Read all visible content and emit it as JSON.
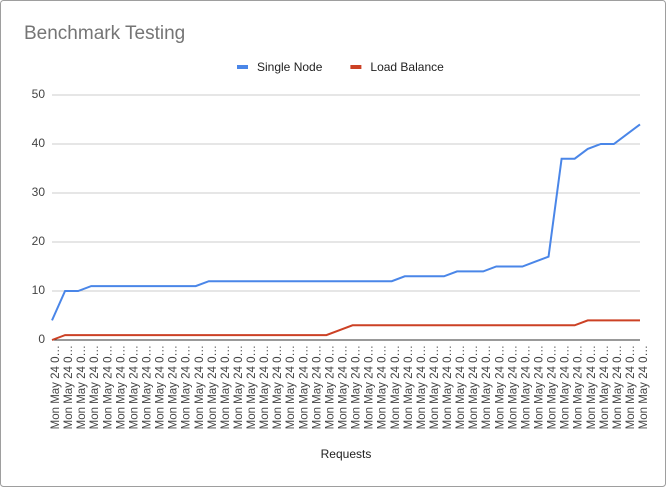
{
  "chart_data": {
    "type": "line",
    "title": "Benchmark Testing",
    "x_label": "Requests",
    "categories": [
      "Mon May 24 0…",
      "Mon May 24 0…",
      "Mon May 24 0…",
      "Mon May 24 0…",
      "Mon May 24 0…",
      "Mon May 24 0…",
      "Mon May 24 0…",
      "Mon May 24 0…",
      "Mon May 24 0…",
      "Mon May 24 0…",
      "Mon May 24 0…",
      "Mon May 24 0…",
      "Mon May 24 0…",
      "Mon May 24 0…",
      "Mon May 24 0…",
      "Mon May 24 0…",
      "Mon May 24 0…",
      "Mon May 24 0…",
      "Mon May 24 0…",
      "Mon May 24 0…",
      "Mon May 24 0…",
      "Mon May 24 0…",
      "Mon May 24 0…",
      "Mon May 24 0…",
      "Mon May 24 0…",
      "Mon May 24 0…",
      "Mon May 24 0…",
      "Mon May 24 0…",
      "Mon May 24 0…",
      "Mon May 24 0…",
      "Mon May 24 0…",
      "Mon May 24 0…",
      "Mon May 24 0…",
      "Mon May 24 0…",
      "Mon May 24 0…",
      "Mon May 24 0…",
      "Mon May 24 0…",
      "Mon May 24 0…",
      "Mon May 24 0…",
      "Mon May 24 0…",
      "Mon May 24 0…",
      "Mon May 24 0…",
      "Mon May 24 0…",
      "Mon May 24 0…",
      "Mon May 24 0…",
      "Mon May 24 0…"
    ],
    "series": [
      {
        "name": "Single Node",
        "color": "#4a86e8",
        "values": [
          4,
          10,
          10,
          11,
          11,
          11,
          11,
          11,
          11,
          11,
          11,
          11,
          12,
          12,
          12,
          12,
          12,
          12,
          12,
          12,
          12,
          12,
          12,
          12,
          12,
          12,
          12,
          13,
          13,
          13,
          13,
          14,
          14,
          14,
          15,
          15,
          15,
          16,
          17,
          37,
          37,
          39,
          40,
          40,
          42,
          44
        ]
      },
      {
        "name": "Load Balance",
        "color": "#cc4125",
        "values": [
          0,
          1,
          1,
          1,
          1,
          1,
          1,
          1,
          1,
          1,
          1,
          1,
          1,
          1,
          1,
          1,
          1,
          1,
          1,
          1,
          1,
          1,
          2,
          3,
          3,
          3,
          3,
          3,
          3,
          3,
          3,
          3,
          3,
          3,
          3,
          3,
          3,
          3,
          3,
          3,
          3,
          4,
          4,
          4,
          4,
          4
        ]
      }
    ],
    "ylim": [
      0,
      50
    ],
    "yticks": [
      0,
      10,
      20,
      30,
      40,
      50
    ],
    "grid": true,
    "legend": "top"
  }
}
